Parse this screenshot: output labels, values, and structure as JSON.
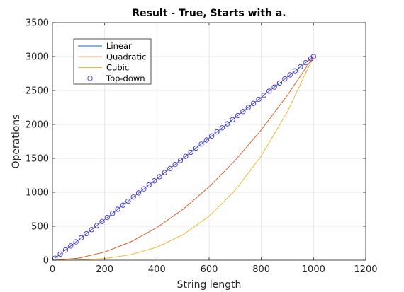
{
  "chart_data": {
    "type": "line",
    "title": "Result - True, Starts with a.",
    "xlabel": "String length",
    "ylabel": "Operations",
    "xlim": [
      0,
      1200
    ],
    "ylim": [
      0,
      3500
    ],
    "xticks": [
      0,
      200,
      400,
      600,
      800,
      1000,
      1200
    ],
    "yticks": [
      0,
      500,
      1000,
      1500,
      2000,
      2500,
      3000,
      3500
    ],
    "grid": true,
    "legend": "top-left",
    "series": [
      {
        "name": "Linear",
        "style": "line",
        "color": "#0072bd",
        "x": [
          10,
          1000
        ],
        "y": [
          30,
          3000
        ]
      },
      {
        "name": "Quadratic",
        "style": "line",
        "color": "#d95319",
        "x": [
          10,
          100,
          200,
          300,
          400,
          500,
          600,
          700,
          800,
          900,
          1000
        ],
        "y": [
          0,
          30,
          120,
          270,
          480,
          750,
          1080,
          1470,
          1920,
          2430,
          3000
        ]
      },
      {
        "name": "Cubic",
        "style": "line",
        "color": "#edb120",
        "x": [
          10,
          100,
          200,
          300,
          400,
          500,
          600,
          700,
          800,
          900,
          1000
        ],
        "y": [
          0,
          3,
          24,
          81,
          192,
          375,
          648,
          1029,
          1536,
          2187,
          3000
        ]
      },
      {
        "name": "Top-down",
        "style": "markers",
        "color": "#7e2f8e",
        "x": [
          10,
          30,
          50,
          70,
          90,
          110,
          130,
          150,
          170,
          190,
          210,
          230,
          250,
          270,
          290,
          310,
          330,
          350,
          370,
          390,
          410,
          430,
          450,
          470,
          490,
          510,
          530,
          550,
          570,
          590,
          610,
          630,
          650,
          670,
          690,
          710,
          730,
          750,
          770,
          790,
          810,
          830,
          850,
          870,
          890,
          910,
          930,
          950,
          970,
          990,
          1000
        ],
        "y": [
          30,
          90,
          150,
          210,
          270,
          330,
          390,
          450,
          510,
          570,
          630,
          690,
          750,
          810,
          870,
          930,
          990,
          1050,
          1110,
          1170,
          1230,
          1290,
          1350,
          1410,
          1470,
          1530,
          1590,
          1650,
          1710,
          1770,
          1830,
          1890,
          1950,
          2010,
          2070,
          2130,
          2190,
          2250,
          2310,
          2370,
          2430,
          2490,
          2550,
          2610,
          2670,
          2730,
          2790,
          2850,
          2910,
          2970,
          3000
        ]
      }
    ]
  }
}
